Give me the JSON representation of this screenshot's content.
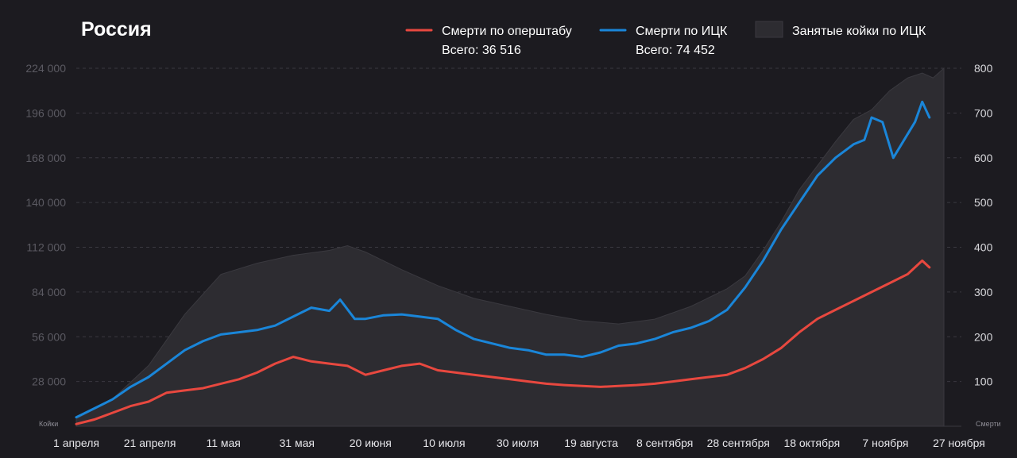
{
  "title": "Россия",
  "colors": {
    "background": "#1c1b20",
    "area": "#2d2c31",
    "area_edge": "#3a393f",
    "opshtab": "#e8483f",
    "ick": "#1a86d9",
    "grid": "#3a3940"
  },
  "legend": {
    "opshtab_label": "Смерти по оперштабу",
    "opshtab_total": "Всего: 36 516",
    "ick_label": "Смерти по ИЦК",
    "ick_total": "Всего: 74 452",
    "beds_label": "Занятые койки по ИЦК"
  },
  "chart_data": {
    "type": "line",
    "title": "Россия",
    "x_range": [
      "2020-04-01",
      "2020-11-27"
    ],
    "x_ticks": [
      "1 апреля",
      "21 апреля",
      "11 мая",
      "31 мая",
      "20 июня",
      "10 июля",
      "30 июля",
      "19 августа",
      "8 сентября",
      "28 сентября",
      "18 октября",
      "7 ноября",
      "27 ноября"
    ],
    "y_left": {
      "label": "Койки",
      "range": [
        0,
        224000
      ],
      "ticks": [
        "28 000",
        "56 000",
        "84 000",
        "112 000",
        "140 000",
        "168 000",
        "196 000",
        "224 000"
      ],
      "tick_values": [
        28000,
        56000,
        84000,
        112000,
        140000,
        168000,
        196000,
        224000
      ]
    },
    "y_right": {
      "label": "Смерти",
      "range": [
        0,
        800
      ],
      "ticks": [
        "100",
        "200",
        "300",
        "400",
        "500",
        "600",
        "700",
        "800"
      ],
      "tick_values": [
        100,
        200,
        300,
        400,
        500,
        600,
        700,
        800
      ]
    },
    "grid": true,
    "legend_position": "top",
    "series": [
      {
        "name": "Занятые койки по ИЦК",
        "type": "area",
        "axis": "left",
        "x": [
          "2020-04-01",
          "2020-04-11",
          "2020-04-21",
          "2020-05-01",
          "2020-05-11",
          "2020-05-21",
          "2020-05-31",
          "2020-06-10",
          "2020-06-15",
          "2020-06-20",
          "2020-06-30",
          "2020-07-10",
          "2020-07-20",
          "2020-07-30",
          "2020-08-09",
          "2020-08-19",
          "2020-08-29",
          "2020-09-08",
          "2020-09-18",
          "2020-09-28",
          "2020-10-03",
          "2020-10-08",
          "2020-10-13",
          "2020-10-18",
          "2020-10-23",
          "2020-10-28",
          "2020-11-02",
          "2020-11-07",
          "2020-11-12",
          "2020-11-17",
          "2020-11-21",
          "2020-11-24",
          "2020-11-27"
        ],
        "values": [
          4500,
          17000,
          38000,
          70000,
          95000,
          102000,
          107000,
          110000,
          113000,
          109000,
          98000,
          88000,
          80000,
          75000,
          70000,
          66000,
          64000,
          67000,
          75000,
          86000,
          94000,
          110000,
          128000,
          148000,
          163000,
          178000,
          192000,
          198000,
          210000,
          218000,
          221000,
          218000,
          224000
        ]
      },
      {
        "name": "Смерти по ИЦК",
        "type": "line",
        "axis": "right",
        "x": [
          "2020-04-01",
          "2020-04-06",
          "2020-04-11",
          "2020-04-16",
          "2020-04-21",
          "2020-04-26",
          "2020-05-01",
          "2020-05-06",
          "2020-05-11",
          "2020-05-16",
          "2020-05-21",
          "2020-05-26",
          "2020-05-31",
          "2020-06-05",
          "2020-06-10",
          "2020-06-13",
          "2020-06-17",
          "2020-06-20",
          "2020-06-25",
          "2020-06-30",
          "2020-07-05",
          "2020-07-10",
          "2020-07-15",
          "2020-07-20",
          "2020-07-25",
          "2020-07-30",
          "2020-08-04",
          "2020-08-09",
          "2020-08-14",
          "2020-08-19",
          "2020-08-24",
          "2020-08-29",
          "2020-09-03",
          "2020-09-08",
          "2020-09-13",
          "2020-09-18",
          "2020-09-23",
          "2020-09-28",
          "2020-10-03",
          "2020-10-08",
          "2020-10-13",
          "2020-10-18",
          "2020-10-23",
          "2020-10-28",
          "2020-11-02",
          "2020-11-05",
          "2020-11-07",
          "2020-11-10",
          "2020-11-13",
          "2020-11-16",
          "2020-11-19",
          "2020-11-21",
          "2020-11-23"
        ],
        "values": [
          20,
          40,
          60,
          88,
          110,
          140,
          170,
          190,
          205,
          210,
          215,
          225,
          245,
          265,
          258,
          283,
          240,
          240,
          248,
          250,
          245,
          240,
          215,
          195,
          185,
          175,
          170,
          160,
          160,
          155,
          165,
          180,
          185,
          195,
          210,
          220,
          235,
          260,
          310,
          370,
          440,
          500,
          560,
          600,
          630,
          640,
          690,
          680,
          600,
          640,
          680,
          725,
          690
        ]
      },
      {
        "name": "Смерти по оперштабу",
        "type": "line",
        "axis": "right",
        "x": [
          "2020-04-01",
          "2020-04-06",
          "2020-04-11",
          "2020-04-16",
          "2020-04-21",
          "2020-04-26",
          "2020-05-01",
          "2020-05-06",
          "2020-05-11",
          "2020-05-16",
          "2020-05-21",
          "2020-05-26",
          "2020-05-31",
          "2020-06-05",
          "2020-06-10",
          "2020-06-15",
          "2020-06-20",
          "2020-06-25",
          "2020-06-30",
          "2020-07-05",
          "2020-07-10",
          "2020-07-15",
          "2020-07-20",
          "2020-07-25",
          "2020-07-30",
          "2020-08-04",
          "2020-08-09",
          "2020-08-14",
          "2020-08-19",
          "2020-08-24",
          "2020-08-29",
          "2020-09-03",
          "2020-09-08",
          "2020-09-13",
          "2020-09-18",
          "2020-09-23",
          "2020-09-28",
          "2020-10-03",
          "2020-10-08",
          "2020-10-13",
          "2020-10-18",
          "2020-10-23",
          "2020-10-28",
          "2020-11-02",
          "2020-11-07",
          "2020-11-12",
          "2020-11-17",
          "2020-11-21",
          "2020-11-23"
        ],
        "values": [
          5,
          15,
          30,
          45,
          55,
          75,
          80,
          85,
          95,
          105,
          120,
          140,
          155,
          145,
          140,
          135,
          115,
          125,
          135,
          140,
          125,
          120,
          115,
          110,
          105,
          100,
          95,
          92,
          90,
          88,
          90,
          92,
          95,
          100,
          105,
          110,
          115,
          130,
          150,
          175,
          210,
          240,
          260,
          280,
          300,
          320,
          340,
          370,
          355
        ]
      }
    ]
  }
}
